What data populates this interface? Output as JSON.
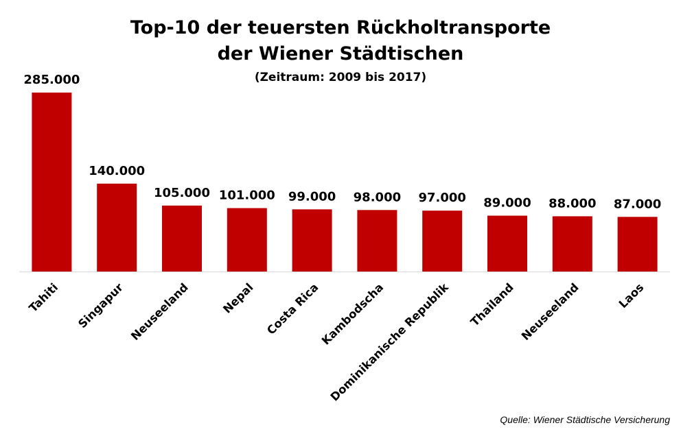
{
  "chart_data": {
    "type": "bar",
    "title": [
      "Top-10 der teuersten Rückholtransporte",
      "der Wiener Städtischen"
    ],
    "subtitle": "(Zeitraum: 2009 bis 2017)",
    "categories": [
      "Tahiti",
      "Singapur",
      "Neuseeland",
      "Nepal",
      "Costa Rica",
      "Kambodscha",
      "Dominikanische Republik",
      "Thailand",
      "Neuseeland",
      "Laos"
    ],
    "values": [
      285000,
      140000,
      105000,
      101000,
      99000,
      98000,
      97000,
      89000,
      88000,
      87000
    ],
    "value_labels": [
      "285.000",
      "140.000",
      "105.000",
      "101.000",
      "99.000",
      "98.000",
      "97.000",
      "89.000",
      "88.000",
      "87.000"
    ],
    "xlabel": "",
    "ylabel": "",
    "ylim": [
      0,
      285000
    ],
    "grid": false,
    "bar_color": "#C00000"
  },
  "source": "Quelle: Wiener Städtische Versicherung"
}
